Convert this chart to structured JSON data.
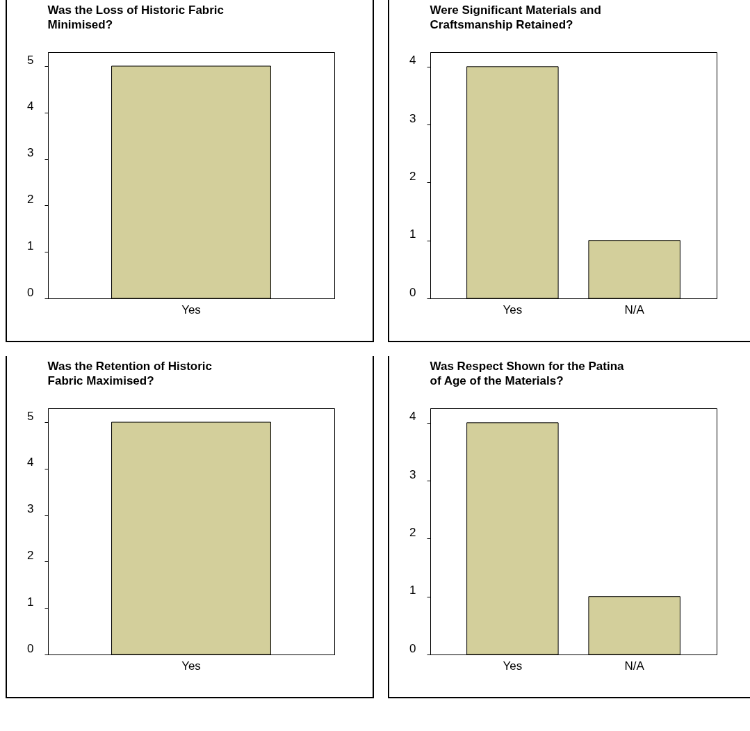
{
  "chart_data": [
    {
      "type": "bar",
      "title": "Was the Loss of Historic Fabric Minimised?",
      "categories": [
        "Yes"
      ],
      "values": [
        5
      ],
      "color": "#d3cf9b",
      "ylim": [
        0,
        5.3
      ],
      "yticks": [
        0,
        1,
        2,
        3,
        4,
        5
      ],
      "grid": false
    },
    {
      "type": "bar",
      "title": "Were Significant Materials and Craftsmanship Retained?",
      "categories": [
        "Yes",
        "N/A"
      ],
      "values": [
        4,
        1
      ],
      "color": "#d3cf9b",
      "ylim": [
        0,
        4.25
      ],
      "yticks": [
        0,
        1,
        2,
        3,
        4
      ],
      "grid": false
    },
    {
      "type": "bar",
      "title": "Was the Retention of Historic Fabric Maximised?",
      "categories": [
        "Yes"
      ],
      "values": [
        5
      ],
      "color": "#d3cf9b",
      "ylim": [
        0,
        5.3
      ],
      "yticks": [
        0,
        1,
        2,
        3,
        4,
        5
      ],
      "grid": false
    },
    {
      "type": "bar",
      "title": "Was Respect Shown for the Patina of Age of the Materials?",
      "categories": [
        "Yes",
        "N/A"
      ],
      "values": [
        4,
        1
      ],
      "color": "#d3cf9b",
      "ylim": [
        0,
        4.25
      ],
      "yticks": [
        0,
        1,
        2,
        3,
        4
      ],
      "grid": false
    }
  ]
}
